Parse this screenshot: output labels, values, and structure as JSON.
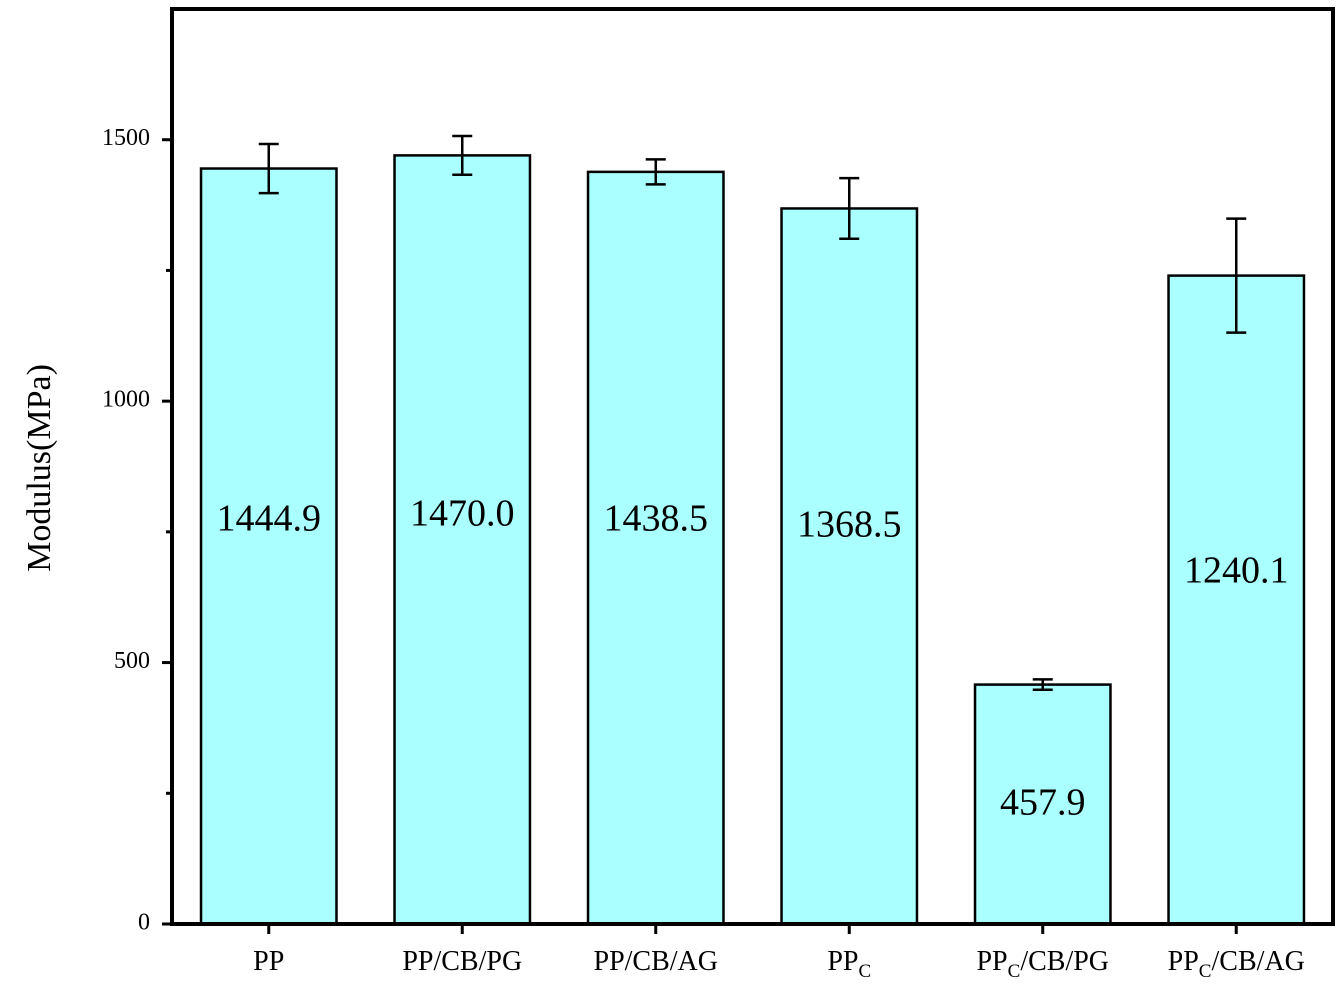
{
  "chart_data": {
    "type": "bar",
    "y_label": "Modulus(MPa)",
    "categories": [
      [
        {
          "text": "PP"
        }
      ],
      [
        {
          "text": "PP/CB/PG"
        }
      ],
      [
        {
          "text": "PP/CB/AG"
        }
      ],
      [
        {
          "text": "PP"
        },
        {
          "text": "C",
          "sub": true
        }
      ],
      [
        {
          "text": "PP"
        },
        {
          "text": "C",
          "sub": true
        },
        {
          "text": "/CB/PG"
        }
      ],
      [
        {
          "text": "PP"
        },
        {
          "text": "C",
          "sub": true
        },
        {
          "text": "/CB/AG"
        }
      ]
    ],
    "values": [
      1444.9,
      1470,
      1438.5,
      1368.5,
      457.9,
      1240.1
    ],
    "value_labels": [
      "1444.9",
      "1470.0",
      "1438.5",
      "1368.5",
      "457.9",
      "1240.1"
    ],
    "errors": [
      47,
      37,
      24,
      58,
      10,
      109
    ],
    "color": "#aaffff",
    "ylim": [
      0,
      1750
    ],
    "yticks": [
      0,
      500,
      1000,
      1500
    ],
    "yminorticks": [
      250,
      750,
      1250
    ],
    "grid": false
  }
}
